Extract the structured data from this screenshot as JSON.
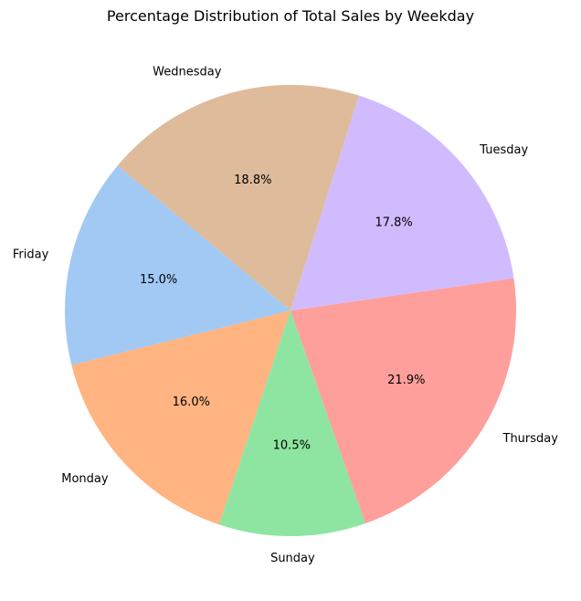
{
  "chart_data": {
    "type": "pie",
    "title": "Percentage Distribution of Total Sales by Weekday",
    "start_angle_deg": 140,
    "direction": "counterclockwise",
    "slices": [
      {
        "label": "Friday",
        "value": 15.0,
        "pct_text": "15.0%",
        "color": "#a1c9f4"
      },
      {
        "label": "Monday",
        "value": 16.0,
        "pct_text": "16.0%",
        "color": "#ffb482"
      },
      {
        "label": "Sunday",
        "value": 10.5,
        "pct_text": "10.5%",
        "color": "#8de5a1"
      },
      {
        "label": "Thursday",
        "value": 21.9,
        "pct_text": "21.9%",
        "color": "#ff9f9b"
      },
      {
        "label": "Tuesday",
        "value": 17.8,
        "pct_text": "17.8%",
        "color": "#d0bbff"
      },
      {
        "label": "Wednesday",
        "value": 18.8,
        "pct_text": "18.8%",
        "color": "#debb9b"
      }
    ]
  }
}
